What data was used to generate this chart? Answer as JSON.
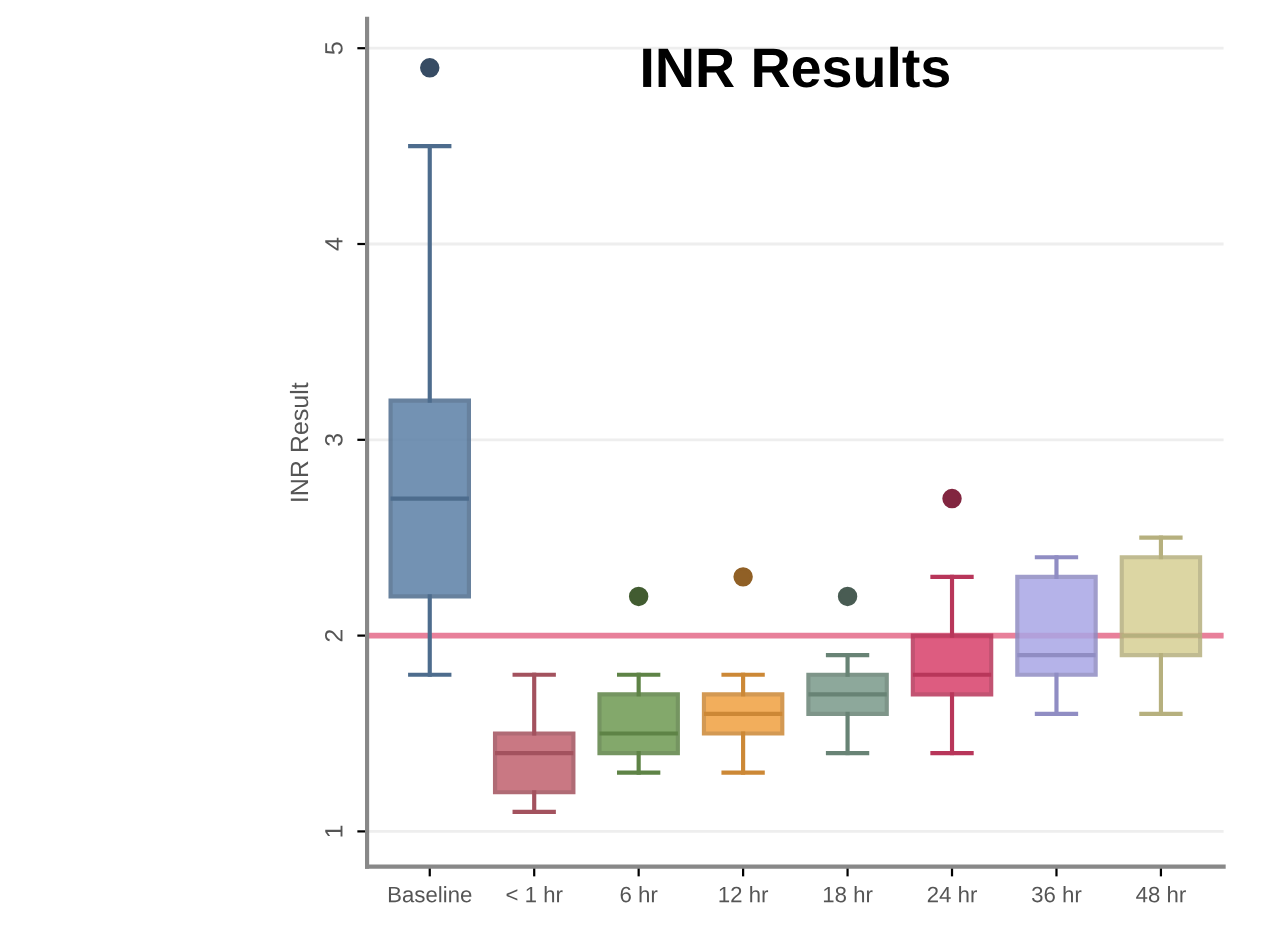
{
  "chart_data": {
    "type": "box",
    "title": "INR Results",
    "ylabel": "INR Result",
    "categories": [
      "Baseline",
      "< 1 hr",
      "6 hr",
      "12 hr",
      "18 hr",
      "24 hr",
      "36 hr",
      "48 hr"
    ],
    "boxes": [
      {
        "low": 1.8,
        "q1": 2.2,
        "median": 2.7,
        "q3": 3.2,
        "high": 4.5,
        "outliers": [
          4.9
        ]
      },
      {
        "low": 1.1,
        "q1": 1.2,
        "median": 1.4,
        "q3": 1.5,
        "high": 1.8
      },
      {
        "low": 1.3,
        "q1": 1.4,
        "median": 1.5,
        "q3": 1.7,
        "high": 1.8,
        "outliers": [
          2.2
        ]
      },
      {
        "low": 1.3,
        "q1": 1.5,
        "median": 1.6,
        "q3": 1.7,
        "high": 1.8,
        "outliers": [
          2.3
        ]
      },
      {
        "low": 1.4,
        "q1": 1.6,
        "median": 1.7,
        "q3": 1.8,
        "high": 1.9,
        "outliers": [
          2.2
        ]
      },
      {
        "low": 1.4,
        "q1": 1.7,
        "median": 1.8,
        "q3": 2.0,
        "high": 2.3,
        "outliers": [
          2.7
        ]
      },
      {
        "low": 1.6,
        "q1": 1.8,
        "median": 1.9,
        "q3": 2.3,
        "high": 2.4
      },
      {
        "low": 1.6,
        "q1": 1.9,
        "median": 2.0,
        "q3": 2.4,
        "high": 2.5
      }
    ],
    "colors": [
      "#5b7fa6",
      "#c0616e",
      "#6e9a52",
      "#f0a040",
      "#7a9a8a",
      "#d8406a",
      "#a9a6e6",
      "#d6cf94"
    ],
    "ylim": [
      0.82,
      5.15
    ],
    "yticks": [
      1,
      2,
      3,
      4,
      5
    ],
    "grid": "y",
    "ref_lines": [
      {
        "axis": "y",
        "value": 2,
        "color": "#e8809a"
      }
    ]
  }
}
